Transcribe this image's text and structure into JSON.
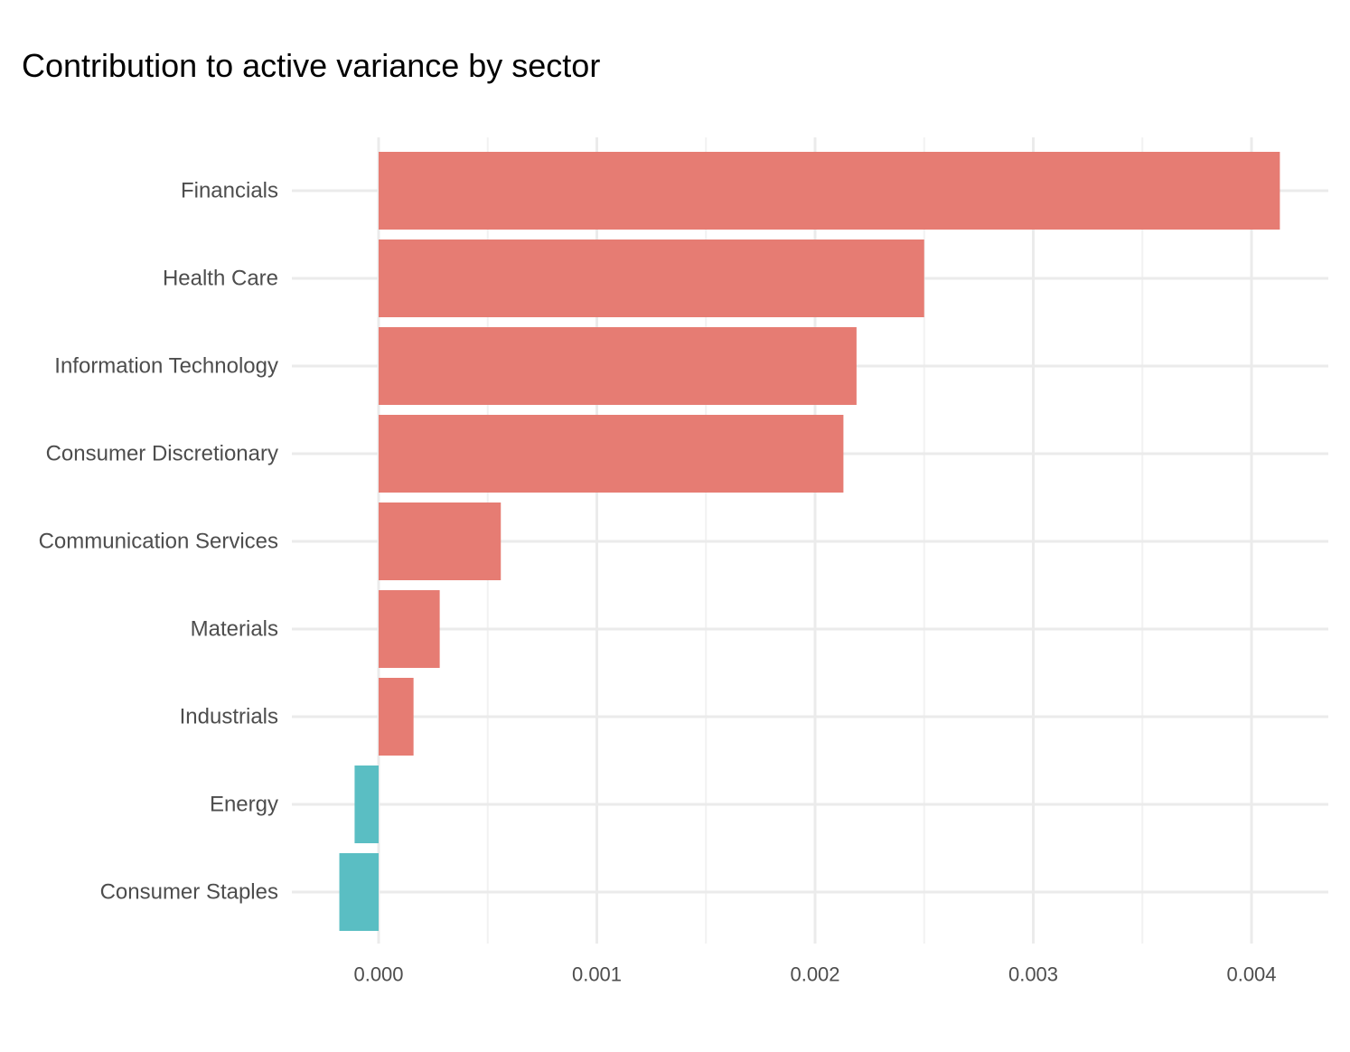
{
  "chart_data": {
    "type": "bar",
    "orientation": "horizontal",
    "title": "Contribution to active variance by sector",
    "xlabel": "",
    "ylabel": "",
    "categories": [
      "Financials",
      "Health Care",
      "Information Technology",
      "Consumer Discretionary",
      "Communication Services",
      "Materials",
      "Industrials",
      "Energy",
      "Consumer Staples"
    ],
    "values": [
      0.00413,
      0.0025,
      0.00219,
      0.00213,
      0.00056,
      0.00028,
      0.00016,
      -0.00011,
      -0.00018
    ],
    "xlim": [
      -0.0004,
      0.00435
    ],
    "xticks": [
      "0.000",
      "0.001",
      "0.002",
      "0.003",
      "0.004"
    ],
    "xtick_values": [
      0,
      0.001,
      0.002,
      0.003,
      0.004
    ],
    "grid": true,
    "legend": "none",
    "colors": {
      "positive": "#E67C73",
      "negative": "#5ABEC3",
      "grid_major": "#EBEBEB",
      "grid_minor": "#F2F2F2"
    }
  }
}
